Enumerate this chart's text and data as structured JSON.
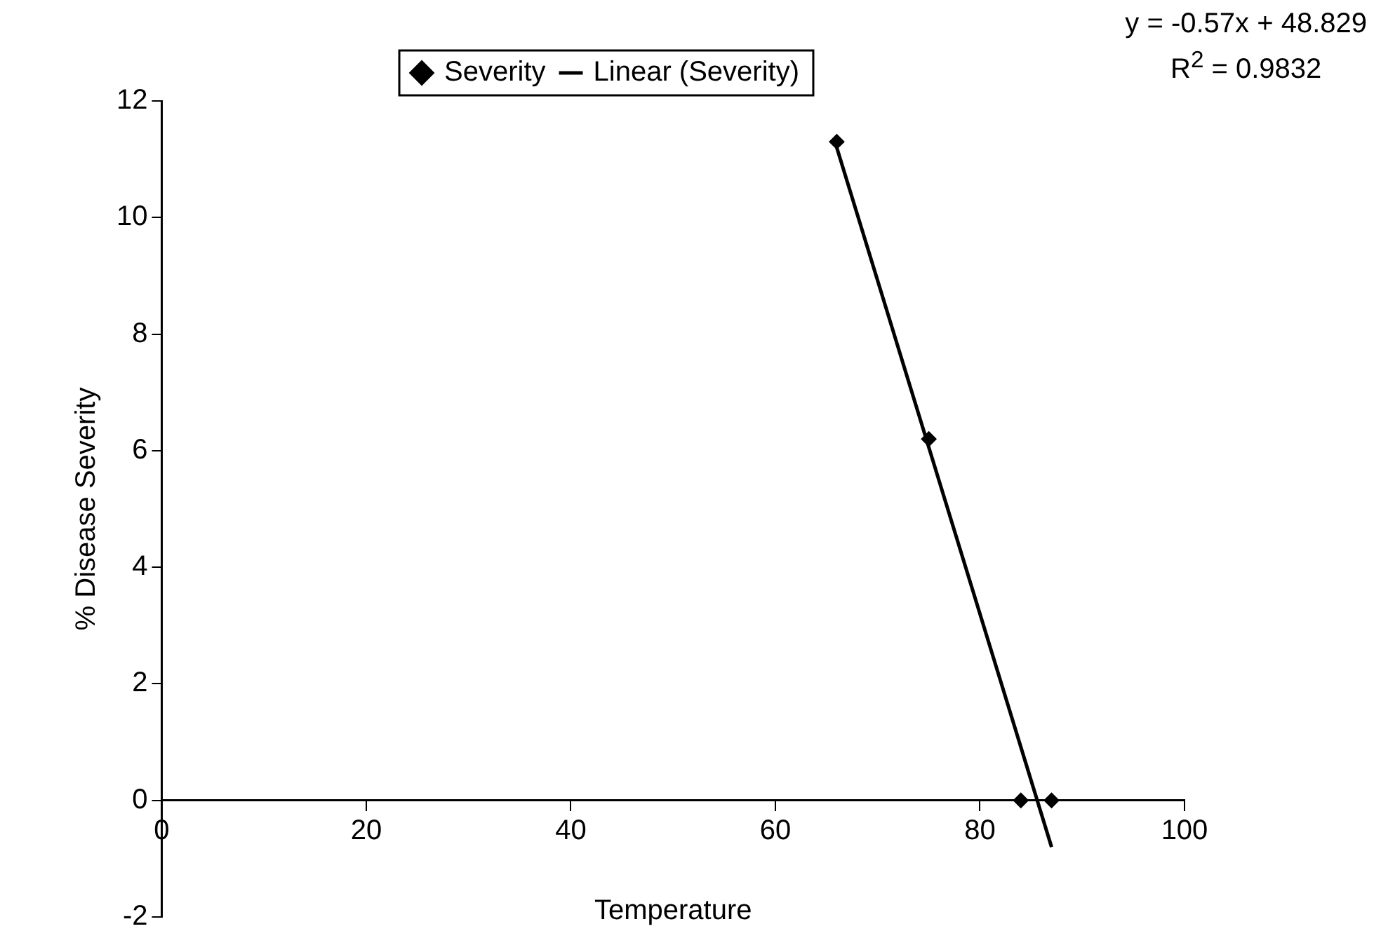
{
  "chart_data": {
    "type": "scatter",
    "xlabel": "Temperature",
    "ylabel": "% Disease Severity",
    "xlim": [
      0,
      100
    ],
    "xticks": [
      0,
      20,
      40,
      60,
      80,
      100
    ],
    "ylim": [
      -2,
      12
    ],
    "yticks": [
      -2,
      0,
      2,
      4,
      6,
      8,
      10,
      12
    ],
    "grid": false,
    "legend": "top",
    "marker": "diamond",
    "series": [
      {
        "name": "Severity",
        "type": "scatter",
        "color": "#000000",
        "x": [
          66,
          75,
          84,
          87
        ],
        "values": [
          11.3,
          6.2,
          0,
          0
        ]
      },
      {
        "name": "Linear (Severity)",
        "type": "line",
        "color": "#000000",
        "x": [
          66,
          87
        ],
        "values": [
          11.2,
          -0.8
        ],
        "line_style": "solid",
        "marker": "none"
      }
    ],
    "annotations": [
      "y = -0.57x + 48.829",
      "R$^{2}$ = 0.9832"
    ]
  }
}
